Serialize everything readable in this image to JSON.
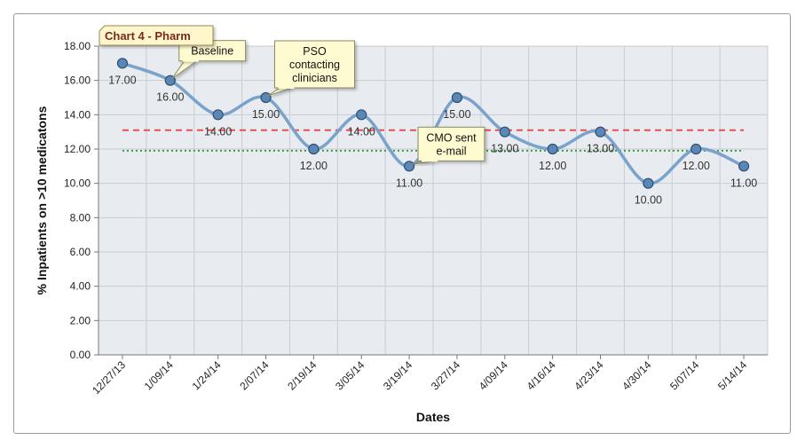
{
  "chart_data": {
    "type": "line",
    "title": "Chart 4 - Pharm",
    "xlabel": "Dates",
    "ylabel": "% Inpatients on >10 medicatons",
    "ylim": [
      0,
      18
    ],
    "yticks": [
      "0.00",
      "2.00",
      "4.00",
      "6.00",
      "8.00",
      "10.00",
      "12.00",
      "14.00",
      "16.00",
      "18.00"
    ],
    "categories": [
      "12/27/13",
      "1/09/14",
      "1/24/14",
      "2/07/14",
      "2/19/14",
      "3/05/14",
      "3/19/14",
      "3/27/14",
      "4/09/14",
      "4/16/14",
      "4/23/14",
      "4/30/14",
      "5/07/14",
      "5/14/14"
    ],
    "series": [
      {
        "values": [
          17,
          16,
          14,
          15,
          12,
          14,
          11,
          15,
          13,
          12,
          13,
          10,
          12,
          11
        ],
        "value_labels": [
          "17.00",
          "16.00",
          "14.00",
          "15.00",
          "12.00",
          "14.00",
          "11.00",
          "15.00",
          "13.00",
          "12.00",
          "13.00",
          "10.00",
          "12.00",
          "11.00"
        ],
        "color": "#7aa3cc"
      }
    ],
    "reference_lines": [
      {
        "value": 13.1,
        "color": "#e85050",
        "style": "dashed"
      },
      {
        "value": 11.9,
        "color": "#3a9a3a",
        "style": "dotted"
      }
    ],
    "annotations": [
      {
        "index": 1,
        "lines": [
          "Baseline"
        ]
      },
      {
        "index": 3,
        "lines": [
          "PSO",
          "contacting",
          "clinicians"
        ]
      },
      {
        "index": 6,
        "lines": [
          "CMO sent",
          "e-mail"
        ]
      }
    ],
    "grid": true,
    "colors": {
      "plot_background": "#e8ebef",
      "grid": "#c8cdd4",
      "marker": "#5b87b7",
      "annotation_fill": "#fffbd0",
      "title_fill": "#fff6cc",
      "title_text": "#7a2a1c"
    }
  }
}
